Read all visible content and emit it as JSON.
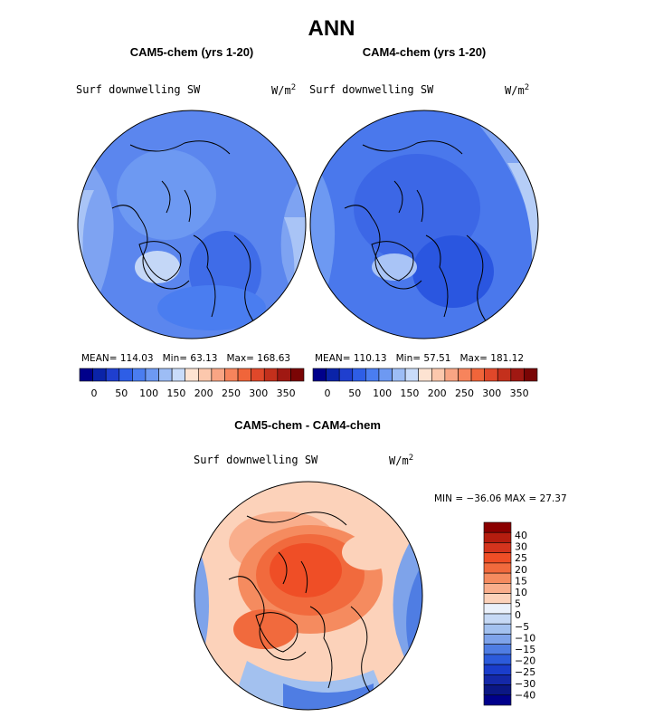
{
  "title": "ANN",
  "panels": [
    {
      "title": "CAM5-chem (yrs 1-20)",
      "variable": "Surf downwelling SW",
      "units": "W/m",
      "units_exp": "2",
      "stats": {
        "mean": "MEAN= 114.03",
        "min": "Min=  63.13",
        "max": "Max= 168.63"
      }
    },
    {
      "title": "CAM4-chem (yrs 1-20)",
      "variable": "Surf downwelling SW",
      "units": "W/m",
      "units_exp": "2",
      "stats": {
        "mean": "MEAN= 110.13",
        "min": "Min=  57.51",
        "max": "Max= 181.12"
      }
    }
  ],
  "abs_colorbar": {
    "colors": [
      "#00008b",
      "#0a23a8",
      "#1f3fcf",
      "#2e5ee6",
      "#4a7df0",
      "#6d99f2",
      "#9dbdf5",
      "#c9dcfa",
      "#fde3d2",
      "#fcc8ad",
      "#f9a584",
      "#f7845c",
      "#f0653a",
      "#e0482a",
      "#c4301c",
      "#a01812",
      "#7a0505"
    ],
    "labels": [
      "0",
      "50",
      "100",
      "150",
      "200",
      "250",
      "300",
      "350"
    ]
  },
  "diff_panel": {
    "title": "CAM5-chem - CAM4-chem",
    "variable": "Surf downwelling SW",
    "units": "W/m",
    "units_exp": "2",
    "minmax": "MIN = −36.06 MAX =  27.37"
  },
  "diff_colorbar": {
    "colors": [
      "#8b0000",
      "#b51d0f",
      "#d4341d",
      "#ef4e26",
      "#f16a3d",
      "#f58b5f",
      "#f9ae8c",
      "#fcd2ba",
      "#eaf1fb",
      "#c6d9f5",
      "#a3c1ef",
      "#7ea3ea",
      "#4f7de3",
      "#2c5bdb",
      "#1a3dcb",
      "#1428a8",
      "#0b1784",
      "#00008b"
    ],
    "labels": [
      "40",
      "30",
      "25",
      "20",
      "15",
      "10",
      "5",
      "0",
      "−5",
      "−10",
      "−15",
      "−20",
      "−25",
      "−30",
      "−40"
    ]
  }
}
